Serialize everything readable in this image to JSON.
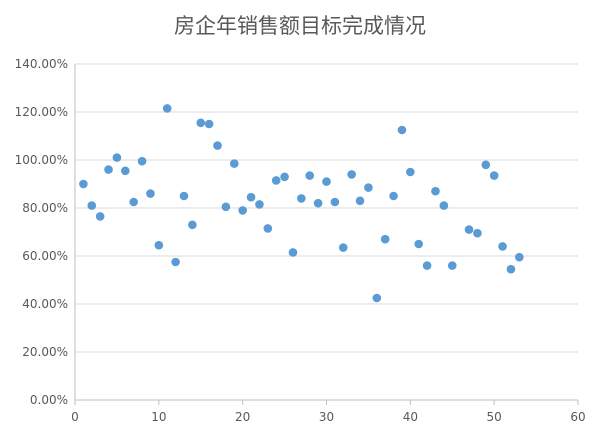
{
  "chart_data": {
    "type": "scatter",
    "title": "房企年销售额目标完成情况",
    "xlim": [
      0,
      60
    ],
    "ylim": [
      0,
      1.4
    ],
    "x_ticks": [
      0,
      10,
      20,
      30,
      40,
      50,
      60
    ],
    "x_tick_labels": [
      "0",
      "10",
      "20",
      "30",
      "40",
      "50",
      "60"
    ],
    "y_ticks": [
      0,
      0.2,
      0.4,
      0.6,
      0.8,
      1.0,
      1.2,
      1.4
    ],
    "y_tick_labels": [
      "0.00%",
      "20.00%",
      "40.00%",
      "60.00%",
      "80.00%",
      "100.00%",
      "120.00%",
      "140.00%"
    ],
    "grid": "horizontal",
    "legend": "none",
    "marker_color": "#5b9bd5",
    "series": [
      {
        "x": [
          1,
          2,
          3,
          4,
          5,
          6,
          7,
          8,
          9,
          10,
          11,
          12,
          13,
          14,
          15,
          16,
          17,
          18,
          19,
          20,
          21,
          22,
          23,
          24,
          25,
          26,
          27,
          28,
          29,
          30,
          31,
          32,
          33,
          34,
          35,
          36,
          37,
          38,
          39,
          40,
          41,
          42,
          43,
          44,
          45,
          47,
          48,
          49,
          50,
          51,
          52,
          53
        ],
        "y": [
          0.9,
          0.81,
          0.765,
          0.96,
          1.01,
          0.955,
          0.825,
          0.995,
          0.86,
          0.645,
          1.215,
          0.575,
          0.85,
          0.73,
          1.155,
          1.15,
          1.06,
          0.805,
          0.985,
          0.79,
          0.845,
          0.815,
          0.715,
          0.915,
          0.93,
          0.615,
          0.84,
          0.935,
          0.82,
          0.91,
          0.825,
          0.635,
          0.94,
          0.83,
          0.885,
          0.425,
          0.67,
          0.85,
          1.125,
          0.95,
          0.65,
          0.56,
          0.87,
          0.81,
          0.56,
          0.71,
          0.695,
          0.98,
          0.935,
          0.64,
          0.545,
          0.595
        ]
      }
    ]
  }
}
